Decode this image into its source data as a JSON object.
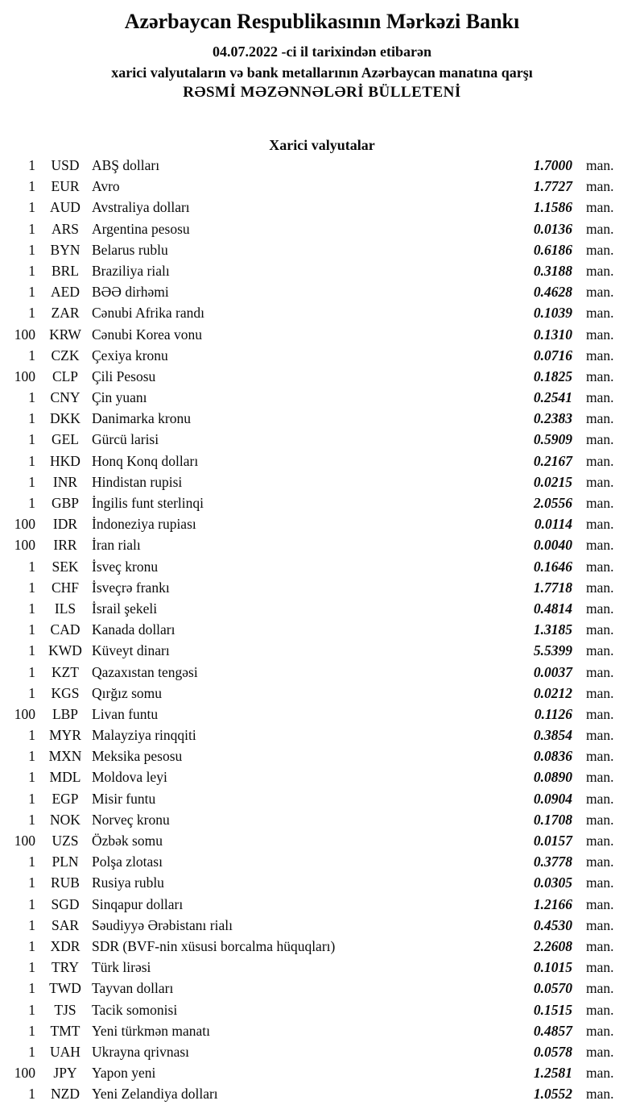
{
  "header": {
    "bank_title": "Azərbaycan Respublikasının Mərkəzi Bankı",
    "date_line": "04.07.2022 -ci il tarixindən etibarən",
    "subject_line": "xarici valyutaların və bank metallarının Azərbaycan manatına qarşı",
    "bulletin_title": "RƏSMİ MƏZƏNNƏLƏRİ BÜLLETENİ"
  },
  "section": {
    "title": "Xarici valyutalar"
  },
  "rates": {
    "unit_label": "man.",
    "rows": [
      {
        "qty": "1",
        "code": "USD",
        "name": "ABŞ dolları",
        "rate": "1.7000"
      },
      {
        "qty": "1",
        "code": "EUR",
        "name": "Avro",
        "rate": "1.7727"
      },
      {
        "qty": "1",
        "code": "AUD",
        "name": "Avstraliya dolları",
        "rate": "1.1586"
      },
      {
        "qty": "1",
        "code": "ARS",
        "name": "Argentina pesosu",
        "rate": "0.0136"
      },
      {
        "qty": "1",
        "code": "BYN",
        "name": "Belarus rublu",
        "rate": "0.6186"
      },
      {
        "qty": "1",
        "code": "BRL",
        "name": "Braziliya rialı",
        "rate": "0.3188"
      },
      {
        "qty": "1",
        "code": "AED",
        "name": "BƏƏ dirhəmi",
        "rate": "0.4628"
      },
      {
        "qty": "1",
        "code": "ZAR",
        "name": "Cənubi Afrika randı",
        "rate": "0.1039"
      },
      {
        "qty": "100",
        "code": "KRW",
        "name": "Cənubi Korea vonu",
        "rate": "0.1310"
      },
      {
        "qty": "1",
        "code": "CZK",
        "name": "Çexiya kronu",
        "rate": "0.0716"
      },
      {
        "qty": "100",
        "code": "CLP",
        "name": "Çili Pesosu",
        "rate": "0.1825"
      },
      {
        "qty": "1",
        "code": "CNY",
        "name": "Çin yuanı",
        "rate": "0.2541"
      },
      {
        "qty": "1",
        "code": "DKK",
        "name": "Danimarka kronu",
        "rate": "0.2383"
      },
      {
        "qty": "1",
        "code": "GEL",
        "name": "Gürcü larisi",
        "rate": "0.5909"
      },
      {
        "qty": "1",
        "code": "HKD",
        "name": "Honq Konq dolları",
        "rate": "0.2167"
      },
      {
        "qty": "1",
        "code": "INR",
        "name": "Hindistan rupisi",
        "rate": "0.0215"
      },
      {
        "qty": "1",
        "code": "GBP",
        "name": "İngilis funt sterlinqi",
        "rate": "2.0556"
      },
      {
        "qty": "100",
        "code": "IDR",
        "name": "İndoneziya rupiası",
        "rate": "0.0114"
      },
      {
        "qty": "100",
        "code": "IRR",
        "name": "İran rialı",
        "rate": "0.0040"
      },
      {
        "qty": "1",
        "code": "SEK",
        "name": "İsveç kronu",
        "rate": "0.1646"
      },
      {
        "qty": "1",
        "code": "CHF",
        "name": "İsveçrə frankı",
        "rate": "1.7718"
      },
      {
        "qty": "1",
        "code": "ILS",
        "name": "İsrail şekeli",
        "rate": "0.4814"
      },
      {
        "qty": "1",
        "code": "CAD",
        "name": "Kanada dolları",
        "rate": "1.3185"
      },
      {
        "qty": "1",
        "code": "KWD",
        "name": "Küveyt dinarı",
        "rate": "5.5399"
      },
      {
        "qty": "1",
        "code": "KZT",
        "name": "Qazaxıstan tengəsi",
        "rate": "0.0037"
      },
      {
        "qty": "1",
        "code": "KGS",
        "name": "Qırğız somu",
        "rate": "0.0212"
      },
      {
        "qty": "100",
        "code": "LBP",
        "name": "Livan funtu",
        "rate": "0.1126"
      },
      {
        "qty": "1",
        "code": "MYR",
        "name": "Malayziya rinqqiti",
        "rate": "0.3854"
      },
      {
        "qty": "1",
        "code": "MXN",
        "name": "Meksika pesosu",
        "rate": "0.0836"
      },
      {
        "qty": "1",
        "code": "MDL",
        "name": "Moldova leyi",
        "rate": "0.0890"
      },
      {
        "qty": "1",
        "code": "EGP",
        "name": "Misir funtu",
        "rate": "0.0904"
      },
      {
        "qty": "1",
        "code": "NOK",
        "name": "Norveç kronu",
        "rate": "0.1708"
      },
      {
        "qty": "100",
        "code": "UZS",
        "name": "Özbək somu",
        "rate": "0.0157"
      },
      {
        "qty": "1",
        "code": "PLN",
        "name": "Polşa zlotası",
        "rate": "0.3778"
      },
      {
        "qty": "1",
        "code": "RUB",
        "name": "Rusiya rublu",
        "rate": "0.0305"
      },
      {
        "qty": "1",
        "code": "SGD",
        "name": "Sinqapur dolları",
        "rate": "1.2166"
      },
      {
        "qty": "1",
        "code": "SAR",
        "name": "Səudiyyə Ərəbistanı rialı",
        "rate": "0.4530"
      },
      {
        "qty": "1",
        "code": "XDR",
        "name": "SDR (BVF-nin xüsusi borcalma hüquqları)",
        "rate": "2.2608"
      },
      {
        "qty": "1",
        "code": "TRY",
        "name": "Türk lirəsi",
        "rate": "0.1015"
      },
      {
        "qty": "1",
        "code": "TWD",
        "name": "Tayvan dolları",
        "rate": "0.0570"
      },
      {
        "qty": "1",
        "code": "TJS",
        "name": "Tacik somonisi",
        "rate": "0.1515"
      },
      {
        "qty": "1",
        "code": "TMT",
        "name": "Yeni türkmən manatı",
        "rate": "0.4857"
      },
      {
        "qty": "1",
        "code": "UAH",
        "name": "Ukrayna qrivnası",
        "rate": "0.0578"
      },
      {
        "qty": "100",
        "code": "JPY",
        "name": "Yapon yeni",
        "rate": "1.2581"
      },
      {
        "qty": "1",
        "code": "NZD",
        "name": "Yeni Zelandiya dolları",
        "rate": "1.0552"
      }
    ]
  }
}
